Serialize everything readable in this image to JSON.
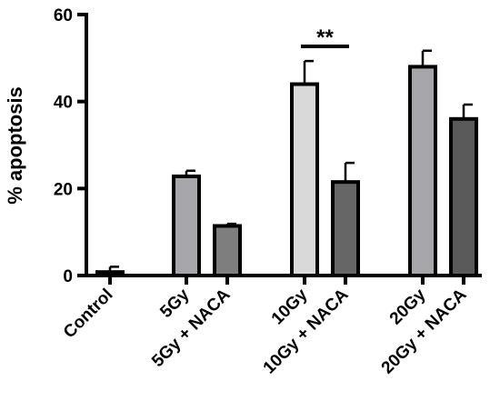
{
  "chart_data": {
    "type": "bar",
    "title": "",
    "xlabel": "",
    "ylabel": "% apoptosis",
    "ylim": [
      0,
      60
    ],
    "yticks": [
      0,
      20,
      40,
      60
    ],
    "grid": false,
    "legend": "none",
    "categories": [
      "Control",
      "5Gy",
      "5Gy + NACA",
      "10Gy",
      "10Gy + NACA",
      "20Gy",
      "20Gy + NACA"
    ],
    "values": [
      0.8,
      22.8,
      11.4,
      44.0,
      21.5,
      48.0,
      36.0
    ],
    "errors": [
      1.2,
      1.3,
      0.5,
      5.3,
      4.4,
      3.7,
      3.3
    ],
    "colors": [
      "#c9c9c9",
      "#a6a6ab",
      "#7e7e7e",
      "#d9d9d9",
      "#666666",
      "#a6a6ab",
      "#5a5a5a"
    ],
    "significance": [
      {
        "from": 3,
        "to": 4,
        "label": "**"
      }
    ]
  }
}
